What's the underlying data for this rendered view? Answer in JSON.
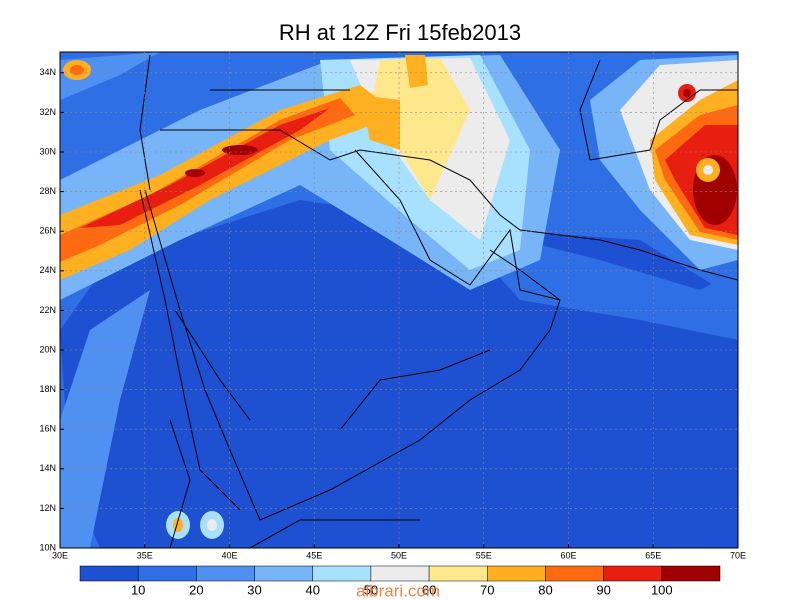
{
  "title": "RH at 12Z Fri 15feb2013",
  "map": {
    "x_labels": [
      "30E",
      "35E",
      "40E",
      "45E",
      "50E",
      "55E",
      "60E",
      "65E",
      "70E"
    ],
    "y_labels": [
      "10N",
      "12N",
      "14N",
      "16N",
      "18N",
      "20N",
      "22N",
      "24N",
      "26N",
      "28N",
      "30N",
      "32N",
      "34N"
    ]
  },
  "colorbar": {
    "colors": [
      "#1e50d2",
      "#2f6fe6",
      "#5090f0",
      "#78b4f8",
      "#a8e0ff",
      "#ececec",
      "#ffe88c",
      "#ffb020",
      "#ff6a10",
      "#e81e10",
      "#a00000"
    ],
    "labels": [
      "10",
      "20",
      "30",
      "40",
      "50",
      "60",
      "70",
      "80",
      "90",
      "100"
    ]
  },
  "watermark": "albrari.com"
}
